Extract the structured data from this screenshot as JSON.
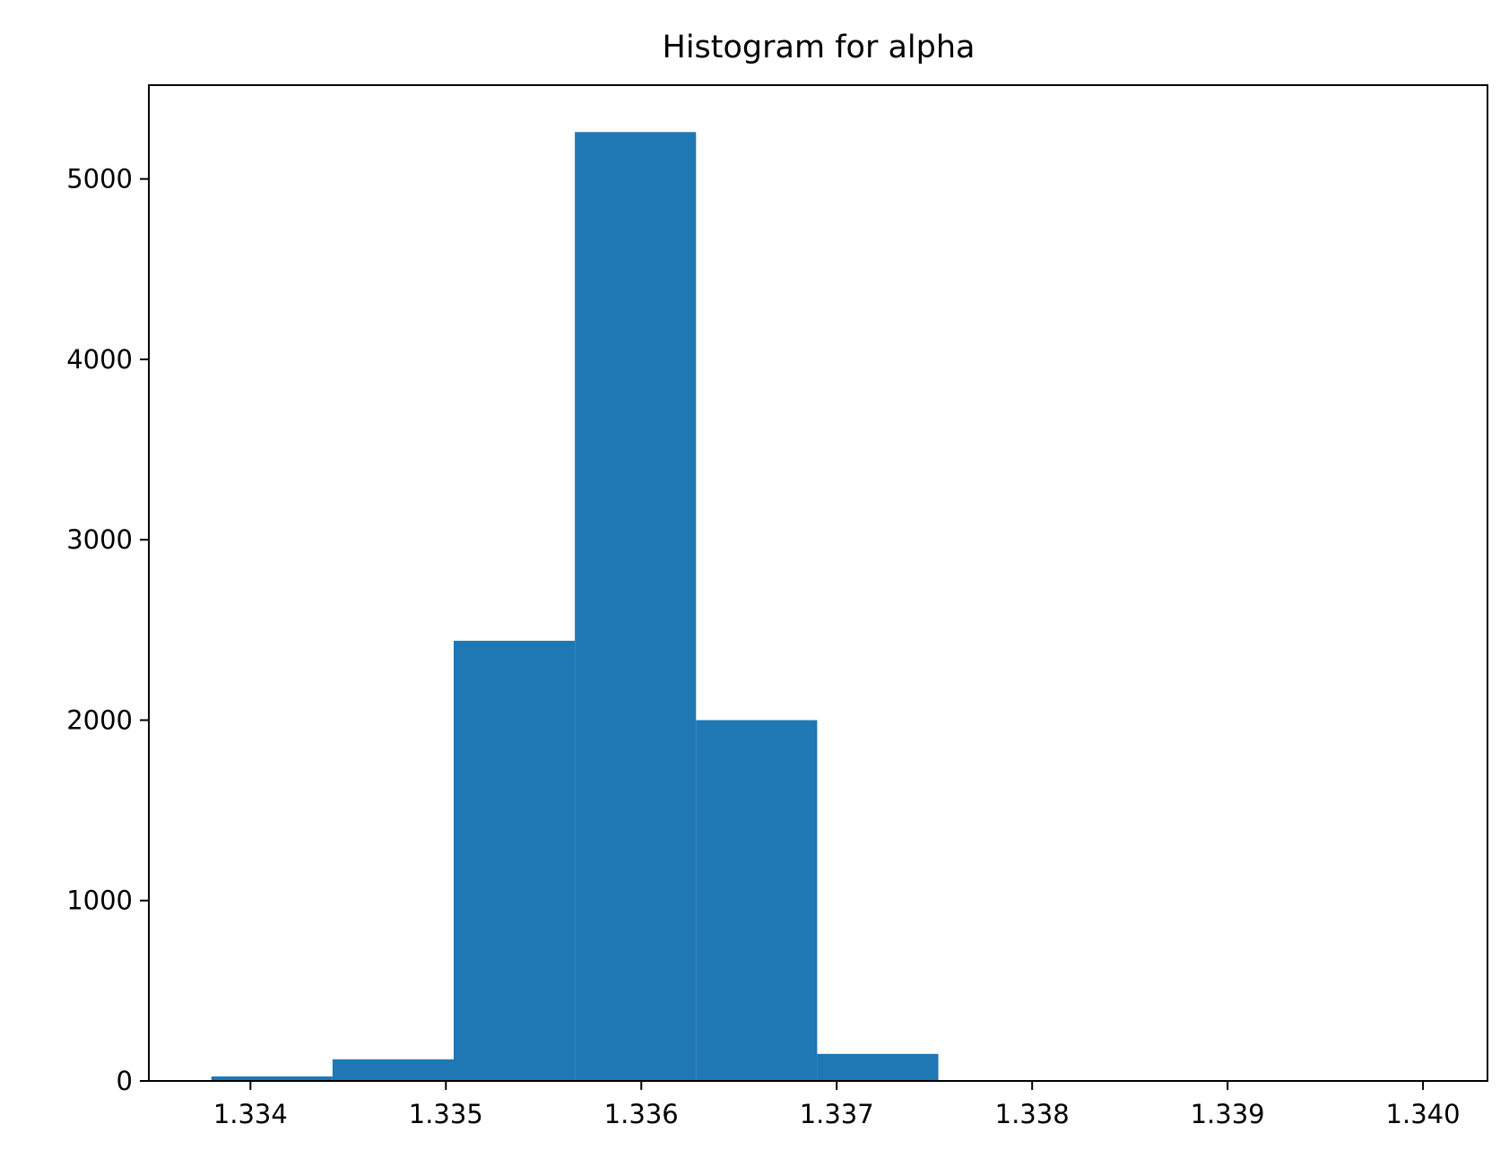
{
  "chart_data": {
    "type": "bar",
    "title": "Histogram for alpha",
    "xlabel": "",
    "ylabel": "",
    "bar_color": "#1f77b4",
    "xlim": [
      1.33348,
      1.34033
    ],
    "ylim": [
      0,
      5520
    ],
    "x_ticks": [
      {
        "value": 1.334,
        "label": "1.334"
      },
      {
        "value": 1.335,
        "label": "1.335"
      },
      {
        "value": 1.336,
        "label": "1.336"
      },
      {
        "value": 1.337,
        "label": "1.337"
      },
      {
        "value": 1.338,
        "label": "1.338"
      },
      {
        "value": 1.339,
        "label": "1.339"
      },
      {
        "value": 1.34,
        "label": "1.340"
      }
    ],
    "y_ticks": [
      {
        "value": 0,
        "label": "0"
      },
      {
        "value": 1000,
        "label": "1000"
      },
      {
        "value": 2000,
        "label": "2000"
      },
      {
        "value": 3000,
        "label": "3000"
      },
      {
        "value": 4000,
        "label": "4000"
      },
      {
        "value": 5000,
        "label": "5000"
      }
    ],
    "bins": [
      {
        "start": 1.3338,
        "end": 1.33442,
        "count": 25
      },
      {
        "start": 1.33442,
        "end": 1.33504,
        "count": 120
      },
      {
        "start": 1.33504,
        "end": 1.33566,
        "count": 2440
      },
      {
        "start": 1.33566,
        "end": 1.33628,
        "count": 5260
      },
      {
        "start": 1.33628,
        "end": 1.3369,
        "count": 2000
      },
      {
        "start": 1.3369,
        "end": 1.33752,
        "count": 150
      },
      {
        "start": 1.33752,
        "end": 1.33814,
        "count": 5
      },
      {
        "start": 1.33814,
        "end": 1.33876,
        "count": 1
      },
      {
        "start": 1.33876,
        "end": 1.33938,
        "count": 1
      },
      {
        "start": 1.33938,
        "end": 1.34,
        "count": 1
      }
    ]
  }
}
